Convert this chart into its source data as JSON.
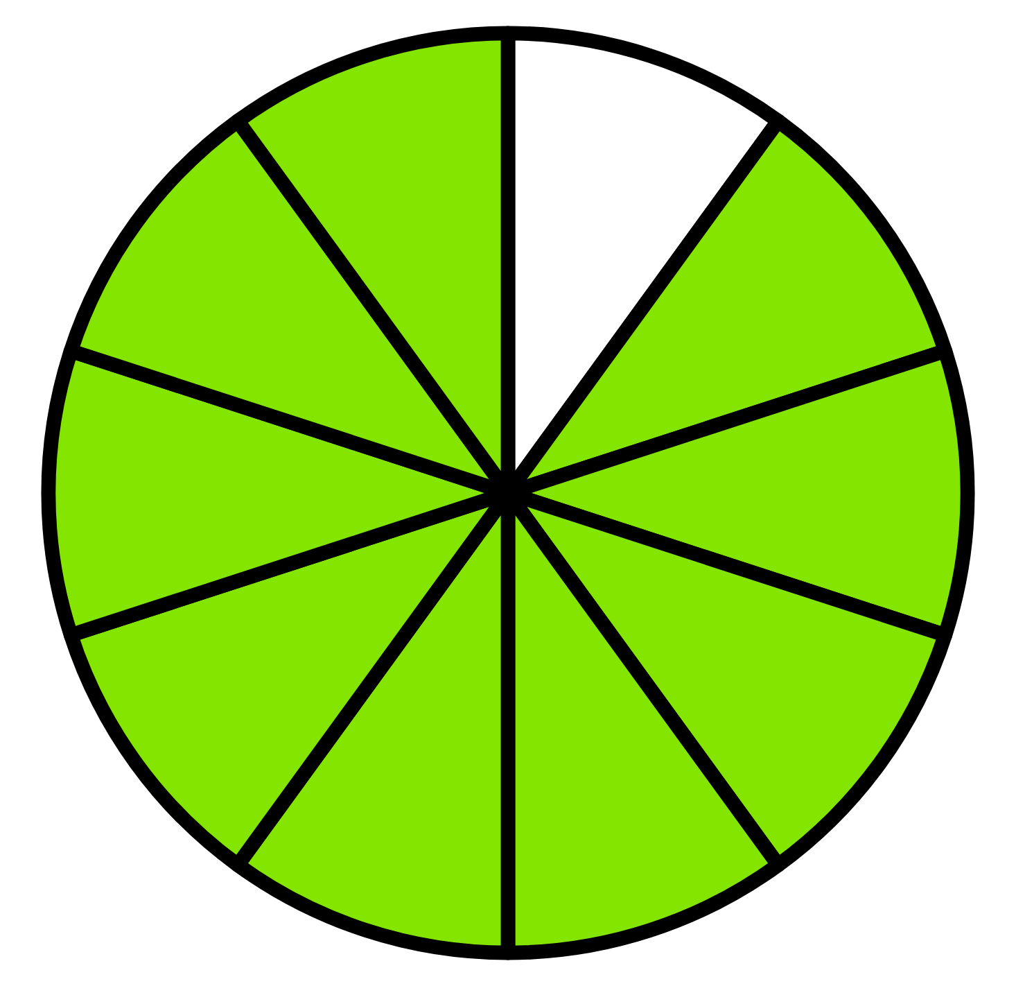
{
  "chart_data": {
    "type": "pie",
    "categories": [
      null,
      null,
      null,
      null,
      null,
      null,
      null,
      null,
      null,
      null
    ],
    "values": [
      10,
      10,
      10,
      10,
      10,
      10,
      10,
      10,
      10,
      10
    ],
    "colors": [
      "#ffffff",
      "#84e600",
      "#84e600",
      "#84e600",
      "#84e600",
      "#84e600",
      "#84e600",
      "#84e600",
      "#84e600",
      "#84e600"
    ]
  }
}
